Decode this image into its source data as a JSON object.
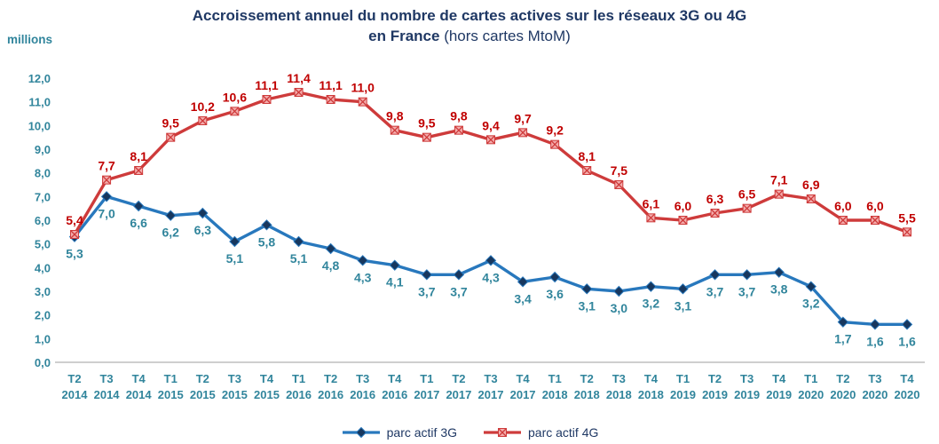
{
  "title": {
    "line1": "Accroissement annuel du nombre de cartes actives sur les réseaux 3G ou 4G",
    "line2_bold": "en France",
    "line2_note": " (hors cartes MtoM)"
  },
  "axis": {
    "y_unit_label": "millions",
    "y_tick_labels": [
      "12,0",
      "11,0",
      "10,0",
      "9,0",
      "8,0",
      "7,0",
      "6,0",
      "5,0",
      "4,0",
      "3,0",
      "2,0",
      "1,0",
      "0,0"
    ]
  },
  "colors": {
    "title": "#1F3864",
    "ticks": "#31859C",
    "axis_line": "#BFBFBF",
    "series_3g_line": "#2878BD",
    "series_3g_marker": "#17375E",
    "series_3g_labels": "#31859C",
    "series_4g_line": "#CE3B3B",
    "series_4g_marker_fill": "#F4ACAC",
    "series_4g_labels": "#C00000"
  },
  "chart_data": {
    "type": "line",
    "unit": "millions",
    "categories": [
      "T2 2014",
      "T3 2014",
      "T4 2014",
      "T1 2015",
      "T2 2015",
      "T3 2015",
      "T4 2015",
      "T1 2016",
      "T2 2016",
      "T3 2016",
      "T4 2016",
      "T1 2017",
      "T2 2017",
      "T3 2017",
      "T4 2017",
      "T1 2018",
      "T2 2018",
      "T3 2018",
      "T4 2018",
      "T1 2019",
      "T2 2019",
      "T3 2019",
      "T4 2019",
      "T1 2020",
      "T2 2020",
      "T3 2020",
      "T4 2020"
    ],
    "ylim": [
      0,
      12
    ],
    "ytick_step": 1,
    "grid": false,
    "legend_position": "bottom",
    "series": [
      {
        "name": "parc actif 3G",
        "color": "#2878BD",
        "marker": "diamond",
        "marker_fill": "#17375E",
        "label_color": "#31859C",
        "label_position": "below",
        "values": [
          5.3,
          7.0,
          6.6,
          6.2,
          6.3,
          5.1,
          5.8,
          5.1,
          4.8,
          4.3,
          4.1,
          3.7,
          3.7,
          4.3,
          3.4,
          3.6,
          3.1,
          3.0,
          3.2,
          3.1,
          3.7,
          3.7,
          3.8,
          3.2,
          1.7,
          1.6,
          1.6
        ],
        "labels": [
          "5,3",
          "7,0",
          "6,6",
          "6,2",
          "6,3",
          "5,1",
          "5,8",
          "5,1",
          "4,8",
          "4,3",
          "4,1",
          "3,7",
          "3,7",
          "4,3",
          "3,4",
          "3,6",
          "3,1",
          "3,0",
          "3,2",
          "3,1",
          "3,7",
          "3,7",
          "3,8",
          "3,2",
          "1,7",
          "1,6",
          "1,6"
        ]
      },
      {
        "name": "parc actif 4G",
        "color": "#CE3B3B",
        "marker": "x-square",
        "marker_fill": "#F4ACAC",
        "label_color": "#C00000",
        "label_position": "above",
        "values": [
          5.4,
          7.7,
          8.1,
          9.5,
          10.2,
          10.6,
          11.1,
          11.4,
          11.1,
          11.0,
          9.8,
          9.5,
          9.8,
          9.4,
          9.7,
          9.2,
          8.1,
          7.5,
          6.1,
          6.0,
          6.3,
          6.5,
          7.1,
          6.9,
          6.0,
          6.0,
          5.5
        ],
        "labels": [
          "5,4",
          "7,7",
          "8,1",
          "9,5",
          "10,2",
          "10,6",
          "11,1",
          "11,4",
          "11,1",
          "11,0",
          "9,8",
          "9,5",
          "9,8",
          "9,4",
          "9,7",
          "9,2",
          "8,1",
          "7,5",
          "6,1",
          "6,0",
          "6,3",
          "6,5",
          "7,1",
          "6,9",
          "6,0",
          "6,0",
          "5,5"
        ]
      }
    ]
  }
}
